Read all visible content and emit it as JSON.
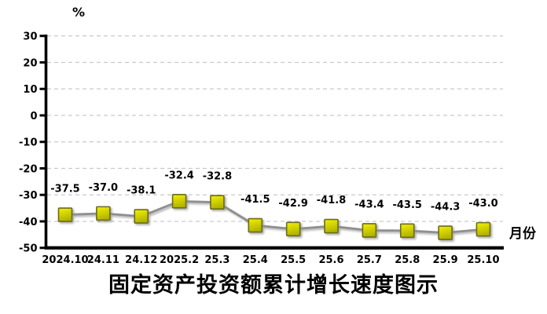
{
  "chart": {
    "y_unit_label": "%",
    "x_unit_label": "月份",
    "title": "固定资产投资额累计增长速度图示"
  },
  "chart_data": {
    "type": "line",
    "title": "固定资产投资额累计增长速度图示",
    "ylabel": "%",
    "xlabel": "月份",
    "categories": [
      "2024.10",
      "24.11",
      "24.12",
      "2025.2",
      "25.3",
      "25.4",
      "25.5",
      "25.6",
      "25.7",
      "25.8",
      "25.9",
      "25.10"
    ],
    "values": [
      -37.5,
      -37.0,
      -38.1,
      -32.4,
      -32.8,
      -41.5,
      -42.9,
      -41.8,
      -43.4,
      -43.5,
      -44.3,
      -43.0
    ],
    "data_labels": [
      "-37.5",
      "-37.0",
      "-38.1",
      "-32.4",
      "-32.8",
      "-41.5",
      "-42.9",
      "-41.8",
      "-43.4",
      "-43.5",
      "-44.3",
      "-43.0"
    ],
    "ylim": [
      -50,
      30
    ],
    "yticks": [
      30,
      20,
      10,
      0,
      -10,
      -20,
      -30,
      -40,
      -50
    ],
    "grid": "horizontal-dashed",
    "legend": "none",
    "marker": "square",
    "colors": {
      "line": "#8f8f8f",
      "marker_fill_top": "#f2f200",
      "marker_fill_bottom": "#b2b200",
      "marker_border": "#6b6b1e",
      "gridline": "#c9c9c9",
      "axis": "#000000",
      "text": "#000000",
      "background": "#ffffff"
    }
  }
}
